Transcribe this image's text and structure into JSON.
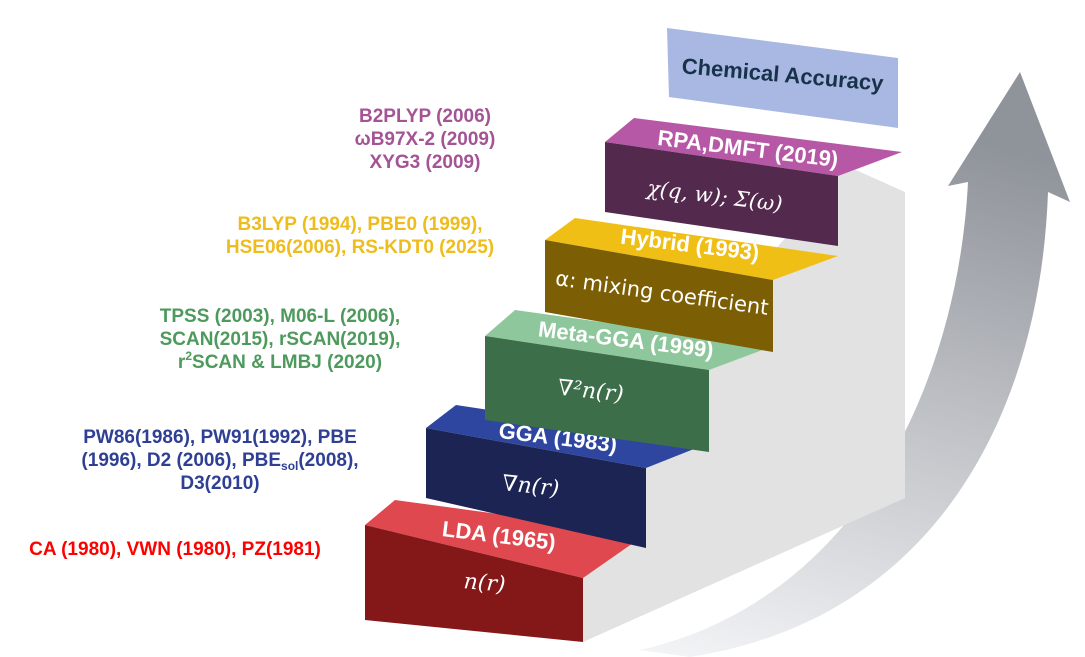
{
  "accent": {
    "arrow_gradient": [
      "#f4f5f7",
      "#8f939a"
    ],
    "banner": "#a8b8e2",
    "step_side": "#e2e2e2"
  },
  "banner": {
    "label": "Chemical Accuracy"
  },
  "steps": [
    {
      "name": "LDA (1965)",
      "variable": "n(r)",
      "top_color": "#e0484f",
      "front_color": "#841718",
      "example_lines": [
        "CA (1980), VWN (1980), PZ(1981)"
      ],
      "example_color": "#ff0000"
    },
    {
      "name": "GGA (1983)",
      "variable": "∇n(r)",
      "top_color": "#2f46a0",
      "front_color": "#1c2453",
      "example_lines": [
        "PW86(1986), PW91(1992), PBE",
        "(1996), D2 (2006), PBE",
        "D3(2010)"
      ],
      "example_sub": "sol",
      "example_tail": "(2008),",
      "example_color": "#2f3f94"
    },
    {
      "name": "Meta-GGA (1999)",
      "variable": "∇²n(r)",
      "top_color": "#8fc79d",
      "front_color": "#3b6e49",
      "example_lines": [
        "TPSS (2003), M06-L (2006),",
        "SCAN(2015), rSCAN(2019),",
        "r",
        "SCAN & LMBJ (2020)"
      ],
      "example_sup": "2",
      "example_color": "#4e9a5d"
    },
    {
      "name": "Hybrid (1993)",
      "variable": "α: mixing coefficient",
      "top_color": "#f0bf15",
      "front_color": "#7c5e04",
      "example_lines": [
        "B3LYP (1994), PBE0 (1999),",
        "HSE06(2006), RS-KDT0 (2025)"
      ],
      "example_color": "#efbc1d"
    },
    {
      "name": "RPA,DMFT (2019)",
      "variable": "χ(q, w); Σ(ω)",
      "top_color": "#b658a5",
      "front_color": "#53294e",
      "example_lines": [
        "B2PLYP (2006)",
        "ωB97X-2 (2009)",
        "XYG3 (2009)"
      ],
      "example_color": "#a45495"
    }
  ]
}
